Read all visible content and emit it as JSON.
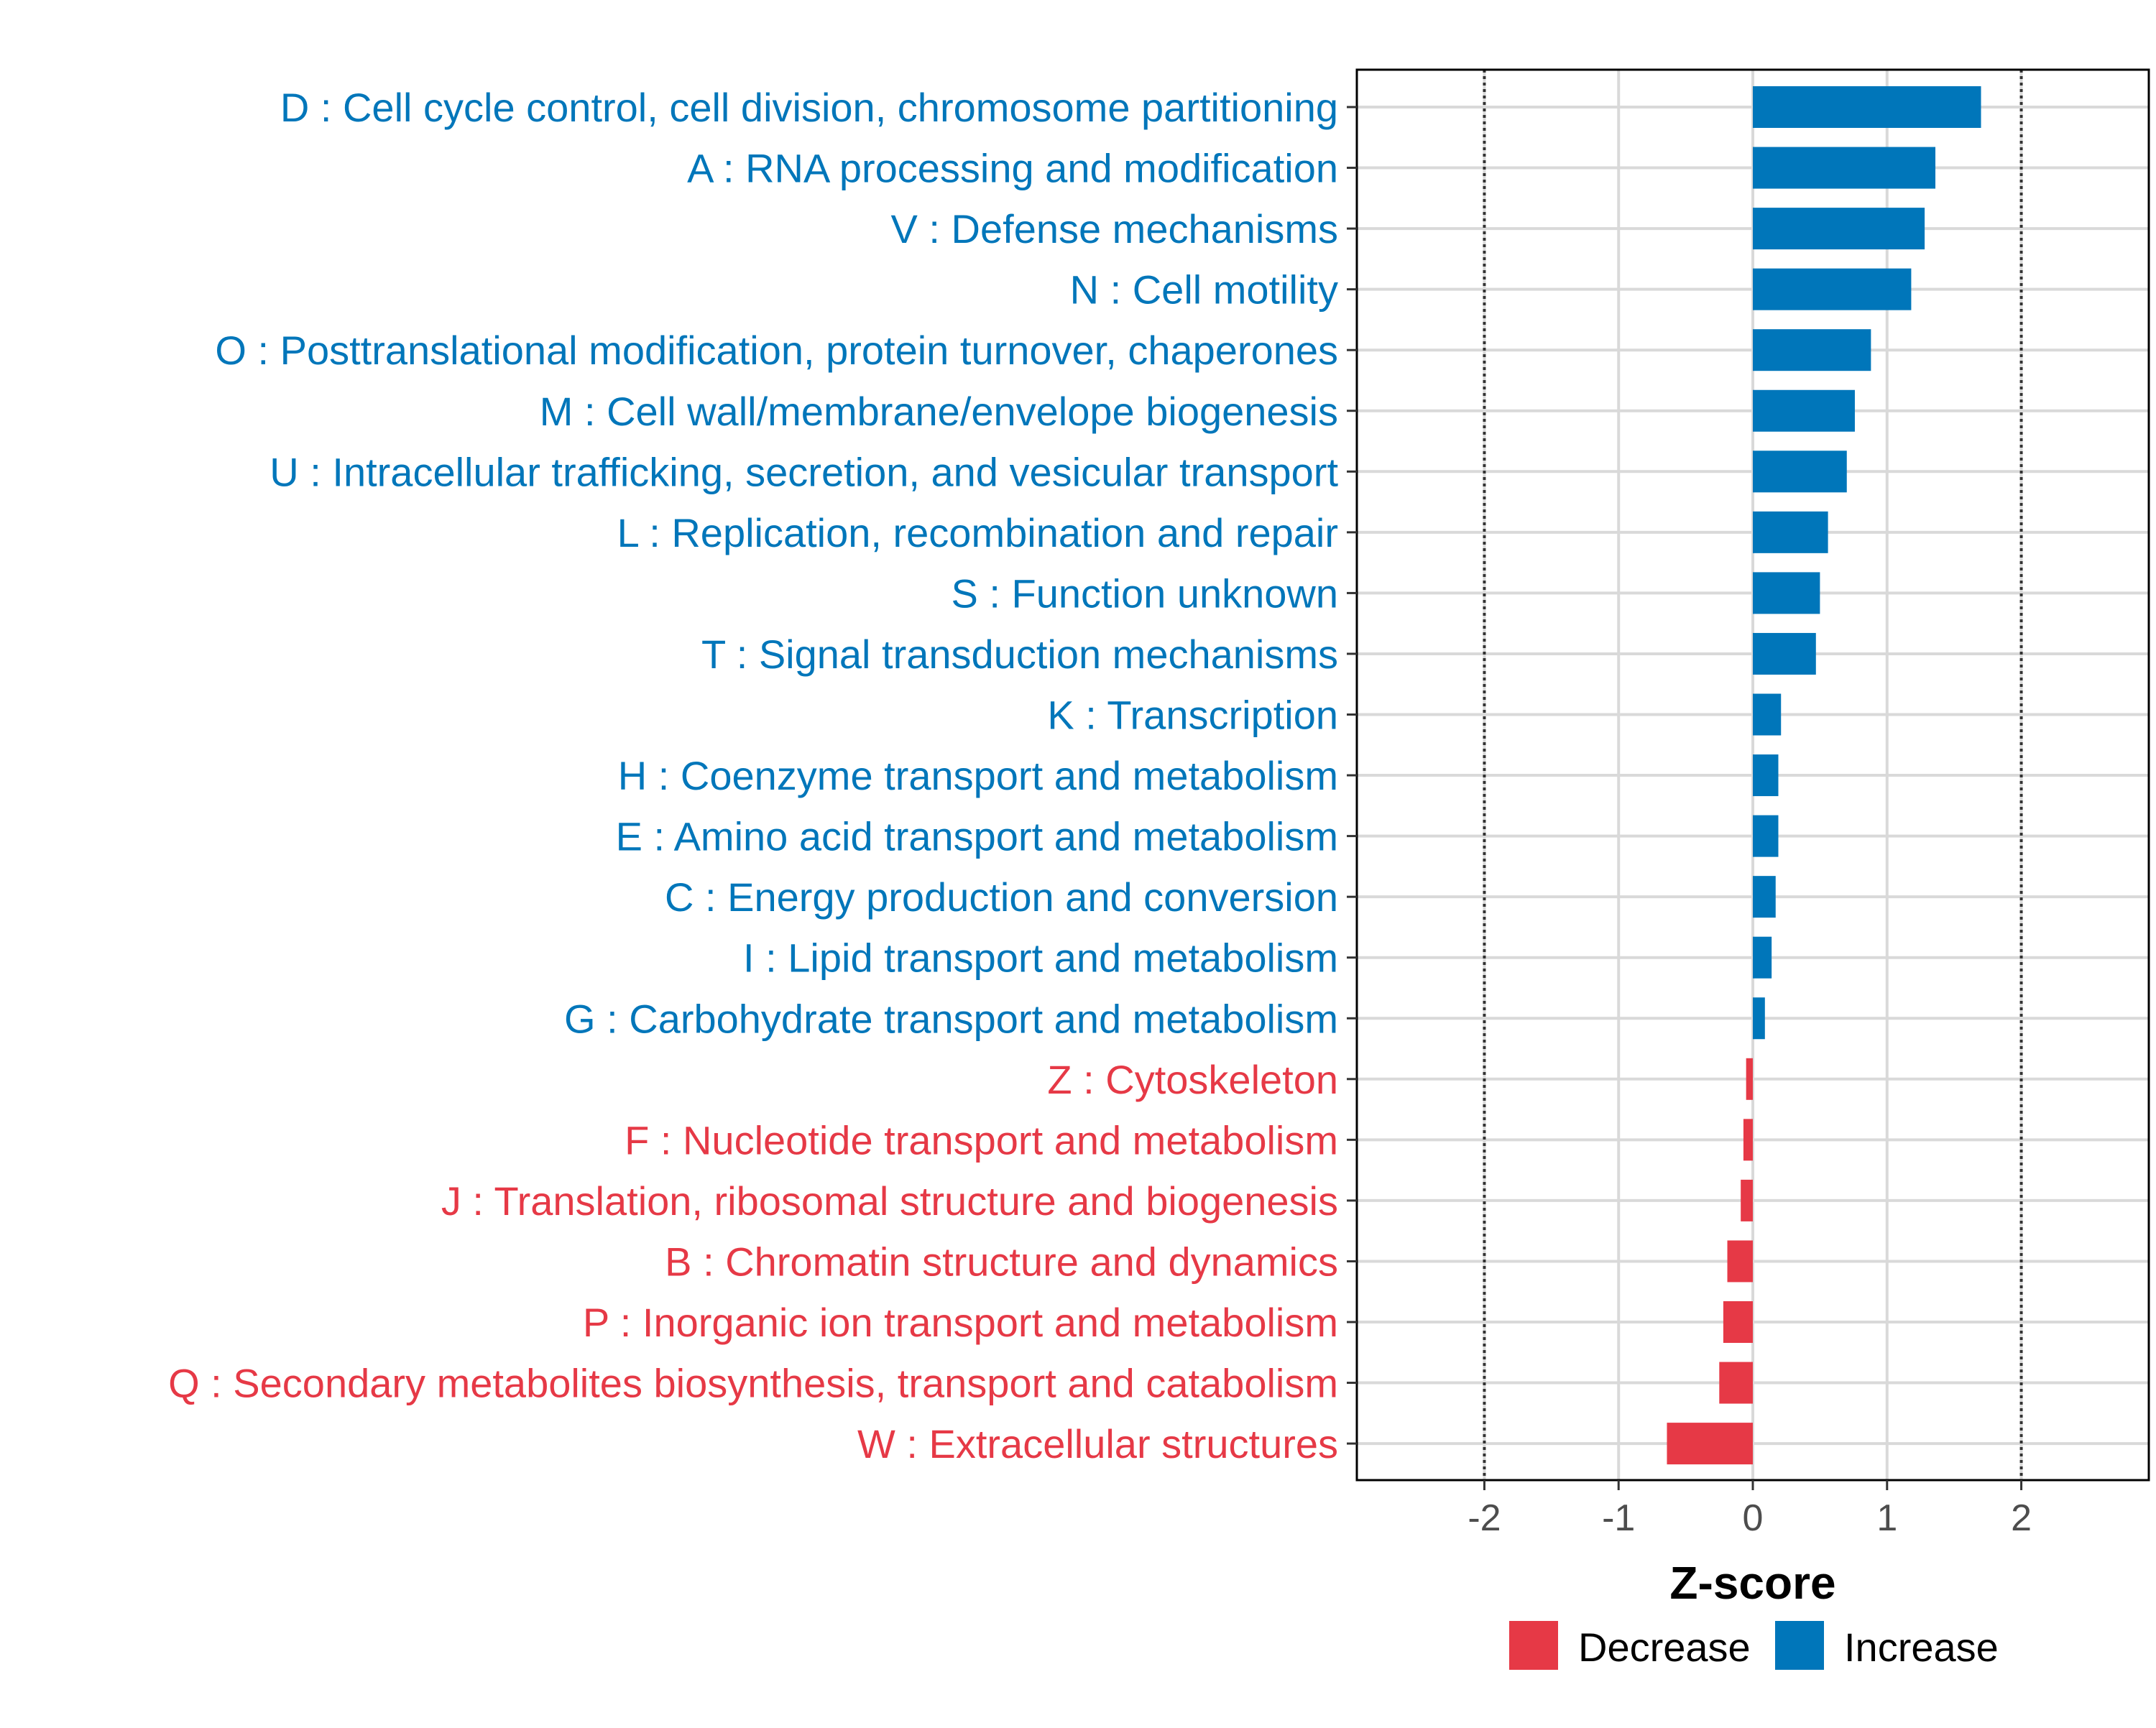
{
  "colors": {
    "increase": "#0076BA",
    "decrease": "#E63946",
    "grid": "#D9D9D9",
    "refline": "#333333",
    "panel_border": "#000000"
  },
  "chart_data": {
    "type": "bar",
    "orientation": "horizontal",
    "title": "",
    "xlabel": "Z-score",
    "ylabel": "",
    "xlim": [
      -2.95,
      2.95
    ],
    "xticks": [
      -2,
      -1,
      0,
      1,
      2
    ],
    "xtick_labels": [
      "-2",
      "-1",
      "0",
      "1",
      "2"
    ],
    "reference_lines": [
      -2,
      2
    ],
    "grid": true,
    "legend": {
      "position": "bottom",
      "entries": [
        {
          "key": "decrease",
          "label": "Decrease"
        },
        {
          "key": "increase",
          "label": "Increase"
        }
      ]
    },
    "categories": [
      {
        "label": "D : Cell cycle control, cell division, chromosome partitioning",
        "value": 1.7,
        "direction": "increase"
      },
      {
        "label": "A : RNA processing and modification",
        "value": 1.36,
        "direction": "increase"
      },
      {
        "label": "V : Defense mechanisms",
        "value": 1.28,
        "direction": "increase"
      },
      {
        "label": "N : Cell motility",
        "value": 1.18,
        "direction": "increase"
      },
      {
        "label": "O : Posttranslational modification, protein turnover, chaperones",
        "value": 0.88,
        "direction": "increase"
      },
      {
        "label": "M : Cell wall/membrane/envelope biogenesis",
        "value": 0.76,
        "direction": "increase"
      },
      {
        "label": "U : Intracellular trafficking, secretion, and vesicular transport",
        "value": 0.7,
        "direction": "increase"
      },
      {
        "label": "L : Replication, recombination and repair",
        "value": 0.56,
        "direction": "increase"
      },
      {
        "label": "S : Function unknown",
        "value": 0.5,
        "direction": "increase"
      },
      {
        "label": "T : Signal transduction mechanisms",
        "value": 0.47,
        "direction": "increase"
      },
      {
        "label": "K : Transcription",
        "value": 0.21,
        "direction": "increase"
      },
      {
        "label": "H : Coenzyme transport and metabolism",
        "value": 0.19,
        "direction": "increase"
      },
      {
        "label": "E : Amino acid transport and metabolism",
        "value": 0.19,
        "direction": "increase"
      },
      {
        "label": "C : Energy production and conversion",
        "value": 0.17,
        "direction": "increase"
      },
      {
        "label": "I : Lipid transport and metabolism",
        "value": 0.14,
        "direction": "increase"
      },
      {
        "label": "G : Carbohydrate transport and metabolism",
        "value": 0.09,
        "direction": "increase"
      },
      {
        "label": "Z : Cytoskeleton",
        "value": -0.05,
        "direction": "decrease"
      },
      {
        "label": "F : Nucleotide transport and metabolism",
        "value": -0.07,
        "direction": "decrease"
      },
      {
        "label": "J : Translation, ribosomal structure and biogenesis",
        "value": -0.09,
        "direction": "decrease"
      },
      {
        "label": "B : Chromatin structure and dynamics",
        "value": -0.19,
        "direction": "decrease"
      },
      {
        "label": "P : Inorganic ion transport and metabolism",
        "value": -0.22,
        "direction": "decrease"
      },
      {
        "label": "Q : Secondary metabolites biosynthesis, transport and catabolism",
        "value": -0.25,
        "direction": "decrease"
      },
      {
        "label": "W : Extracellular structures",
        "value": -0.64,
        "direction": "decrease"
      }
    ]
  }
}
